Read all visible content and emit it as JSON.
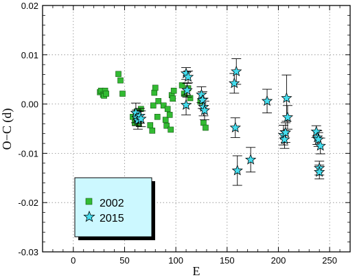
{
  "chart_data": {
    "type": "scatter",
    "xlabel": "E",
    "ylabel": "O−C (d)",
    "xlim": [
      -30,
      270
    ],
    "ylim": [
      -0.03,
      0.02
    ],
    "xticks": [
      "0",
      "50",
      "100",
      "150",
      "200",
      "250"
    ],
    "yticks": [
      "0.02",
      "0.01",
      "0.00",
      "-0.01",
      "-0.02",
      "-0.03"
    ],
    "grid": true,
    "legend_position": "bottom-left",
    "colors": {
      "series_2002": "#33bb33",
      "series_2015": "#44ddee",
      "legend_background": "#ccf8ff"
    },
    "series": [
      {
        "name": "2002",
        "marker": "square",
        "points": [
          {
            "x": 26,
            "y": 0.0024
          },
          {
            "x": 27,
            "y": 0.0027
          },
          {
            "x": 29,
            "y": 0.0019
          },
          {
            "x": 30,
            "y": 0.0017
          },
          {
            "x": 31,
            "y": 0.0027
          },
          {
            "x": 32,
            "y": 0.0021
          },
          {
            "x": 44,
            "y": 0.0061
          },
          {
            "x": 46,
            "y": 0.0048
          },
          {
            "x": 48,
            "y": 0.0021
          },
          {
            "x": 58,
            "y": -0.0026
          },
          {
            "x": 60,
            "y": -0.0038
          },
          {
            "x": 61,
            "y": -0.0021
          },
          {
            "x": 62,
            "y": -0.0015
          },
          {
            "x": 63,
            "y": -0.0033
          },
          {
            "x": 64,
            "y": -0.004
          },
          {
            "x": 66,
            "y": -0.001
          },
          {
            "x": 75,
            "y": -0.0043
          },
          {
            "x": 77,
            "y": -0.0054
          },
          {
            "x": 78,
            "y": -0.0003
          },
          {
            "x": 79,
            "y": 0.0023
          },
          {
            "x": 80,
            "y": 0.0033
          },
          {
            "x": 82,
            "y": -0.0026
          },
          {
            "x": 83,
            "y": 0.0006
          },
          {
            "x": 88,
            "y": -0.0003
          },
          {
            "x": 90,
            "y": -0.0032
          },
          {
            "x": 91,
            "y": -0.0044
          },
          {
            "x": 92,
            "y": -0.001
          },
          {
            "x": 94,
            "y": -0.0022
          },
          {
            "x": 95,
            "y": -0.0052
          },
          {
            "x": 96,
            "y": 0.0018
          },
          {
            "x": 97,
            "y": 0.0011
          },
          {
            "x": 98,
            "y": 0.0027
          },
          {
            "x": 106,
            "y": 0.0038
          },
          {
            "x": 108,
            "y": 0.0021
          },
          {
            "x": 112,
            "y": 0.0032
          },
          {
            "x": 114,
            "y": 0.0012
          },
          {
            "x": 124,
            "y": 0.0005
          },
          {
            "x": 127,
            "y": -0.0038
          },
          {
            "x": 129,
            "y": -0.0048
          }
        ]
      },
      {
        "name": "2015",
        "marker": "star",
        "points": [
          {
            "x": 61,
            "y": -0.0018,
            "err": 0.002
          },
          {
            "x": 62,
            "y": -0.0028,
            "err": 0.0016
          },
          {
            "x": 63,
            "y": -0.0033,
            "err": 0.0018
          },
          {
            "x": 65,
            "y": -0.0024,
            "err": 0.0015
          },
          {
            "x": 66,
            "y": -0.003,
            "err": 0.0016
          },
          {
            "x": 110,
            "y": 0.0062,
            "err": 0.0012
          },
          {
            "x": 111,
            "y": 0.0028,
            "err": 0.0014
          },
          {
            "x": 112,
            "y": 0.0055,
            "err": 0.0012
          },
          {
            "x": 110,
            "y": -0.0002,
            "err": 0.002
          },
          {
            "x": 125,
            "y": 0.0019,
            "err": 0.0016
          },
          {
            "x": 126,
            "y": 0.0008,
            "err": 0.0017
          },
          {
            "x": 127,
            "y": -0.0006,
            "err": 0.0018
          },
          {
            "x": 128,
            "y": -0.0013,
            "err": 0.0019
          },
          {
            "x": 157,
            "y": 0.0042,
            "err": 0.002
          },
          {
            "x": 159,
            "y": 0.0066,
            "err": 0.0026
          },
          {
            "x": 158,
            "y": -0.0048,
            "err": 0.002
          },
          {
            "x": 160,
            "y": -0.0135,
            "err": 0.003
          },
          {
            "x": 173,
            "y": -0.0113,
            "err": 0.0025
          },
          {
            "x": 189,
            "y": 0.0006,
            "err": 0.0024
          },
          {
            "x": 205,
            "y": -0.0063,
            "err": 0.002
          },
          {
            "x": 206,
            "y": -0.0072,
            "err": 0.0018
          },
          {
            "x": 207,
            "y": -0.0058,
            "err": 0.002
          },
          {
            "x": 208,
            "y": 0.0012,
            "err": 0.0047
          },
          {
            "x": 209,
            "y": -0.0027,
            "err": 0.0024
          },
          {
            "x": 237,
            "y": -0.0056,
            "err": 0.0012
          },
          {
            "x": 238,
            "y": -0.0068,
            "err": 0.0014
          },
          {
            "x": 239,
            "y": -0.0072,
            "err": 0.0014
          },
          {
            "x": 240,
            "y": -0.013,
            "err": 0.0014
          },
          {
            "x": 241,
            "y": -0.0085,
            "err": 0.0016
          },
          {
            "x": 240,
            "y": -0.0138,
            "err": 0.0014
          }
        ]
      }
    ]
  }
}
